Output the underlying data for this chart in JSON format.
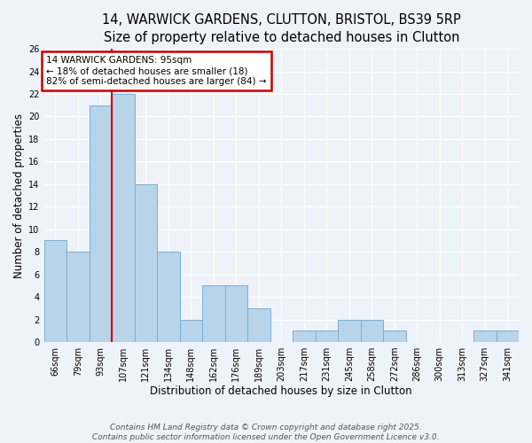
{
  "title_line1": "14, WARWICK GARDENS, CLUTTON, BRISTOL, BS39 5RP",
  "title_line2": "Size of property relative to detached houses in Clutton",
  "xlabel": "Distribution of detached houses by size in Clutton",
  "ylabel": "Number of detached properties",
  "categories": [
    "66sqm",
    "79sqm",
    "93sqm",
    "107sqm",
    "121sqm",
    "134sqm",
    "148sqm",
    "162sqm",
    "176sqm",
    "189sqm",
    "203sqm",
    "217sqm",
    "231sqm",
    "245sqm",
    "258sqm",
    "272sqm",
    "286sqm",
    "300sqm",
    "313sqm",
    "327sqm",
    "341sqm"
  ],
  "values": [
    9,
    8,
    21,
    22,
    14,
    8,
    2,
    5,
    5,
    3,
    0,
    1,
    1,
    2,
    2,
    1,
    0,
    0,
    0,
    1,
    1
  ],
  "bar_color": "#b8d4ea",
  "bar_edge_color": "#7aafd4",
  "red_line_index": 2,
  "annotation_text": "14 WARWICK GARDENS: 95sqm\n← 18% of detached houses are smaller (18)\n82% of semi-detached houses are larger (84) →",
  "annotation_box_color": "#ffffff",
  "annotation_box_edge": "#cc0000",
  "red_line_color": "#cc0000",
  "ylim": [
    0,
    26
  ],
  "yticks": [
    0,
    2,
    4,
    6,
    8,
    10,
    12,
    14,
    16,
    18,
    20,
    22,
    24,
    26
  ],
  "footer_line1": "Contains HM Land Registry data © Crown copyright and database right 2025.",
  "footer_line2": "Contains public sector information licensed under the Open Government Licence v3.0.",
  "background_color": "#eef2f9",
  "title_fontsize": 10.5,
  "axis_label_fontsize": 8.5,
  "tick_fontsize": 7,
  "footer_fontsize": 6.5,
  "annotation_fontsize": 7.5
}
